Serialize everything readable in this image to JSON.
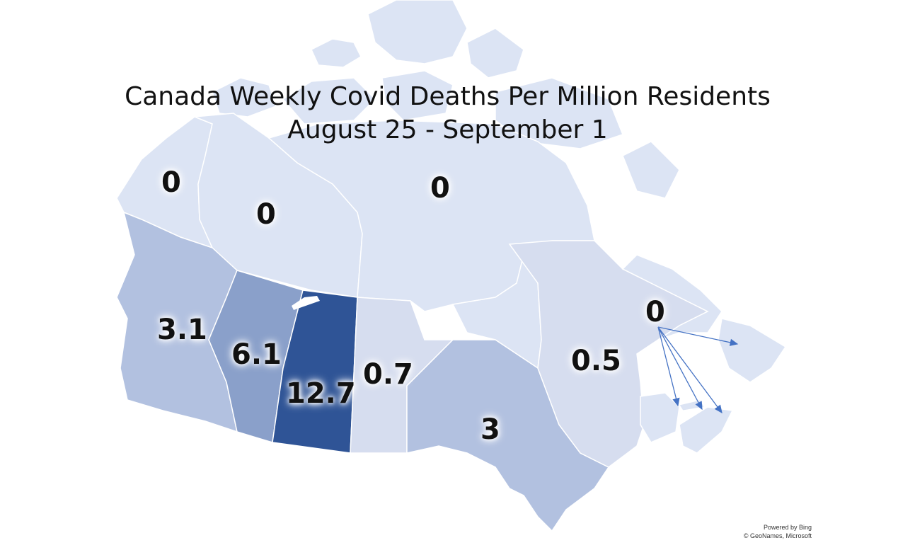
{
  "title": {
    "line1": "Canada Weekly Covid Deaths Per Million Residents",
    "line2": "August 25 - September 1"
  },
  "regions": [
    {
      "id": "yukon",
      "value": "0",
      "color": "#dce4f4"
    },
    {
      "id": "northwest-territories",
      "value": "0",
      "color": "#dce4f4"
    },
    {
      "id": "nunavut",
      "value": "0",
      "color": "#dce4f4"
    },
    {
      "id": "british-columbia",
      "value": "3.1",
      "color": "#b2c1e0"
    },
    {
      "id": "alberta",
      "value": "6.1",
      "color": "#8aa0ca"
    },
    {
      "id": "saskatchewan",
      "value": "12.7",
      "color": "#2f5496"
    },
    {
      "id": "manitoba",
      "value": "0.7",
      "color": "#d6ddef"
    },
    {
      "id": "ontario",
      "value": "3",
      "color": "#b2c1e0"
    },
    {
      "id": "quebec",
      "value": "0.5",
      "color": "#d6ddef"
    },
    {
      "id": "atlantic",
      "value": "0",
      "color": "#dce4f4"
    }
  ],
  "arrow_color": "#4472c4",
  "attribution": {
    "line1": "Powered by Bing",
    "line2": "© GeoNames, Microsoft"
  }
}
